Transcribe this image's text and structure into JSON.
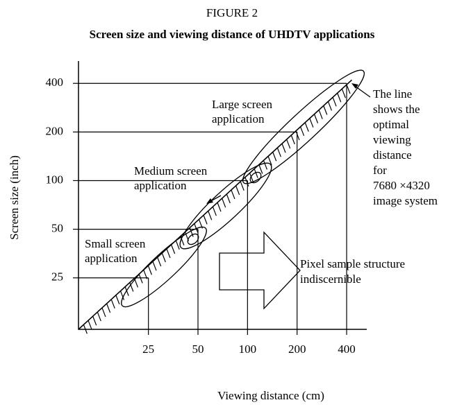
{
  "chart_data": {
    "type": "line",
    "figure_label": "FIGURE 2",
    "title": "Screen size and viewing distance of UHDTV applications",
    "x_label": "Viewing distance (cm)",
    "y_label": "Screen size (inch)",
    "log_x": true,
    "log_y": true,
    "xlim": [
      9.4,
      530
    ],
    "ylim": [
      12,
      550
    ],
    "xticks": [
      25,
      50,
      100,
      200,
      400
    ],
    "yticks": [
      25,
      50,
      100,
      200,
      400
    ],
    "guides": true,
    "series": [
      {
        "color": "#000000",
        "x": [
          9.4,
          430
        ],
        "values": [
          12,
          420
        ]
      }
    ],
    "annotations": [
      {
        "lines": [
          "Large screen",
          "application"
        ]
      },
      {
        "lines": [
          "Medium screen",
          "application"
        ]
      },
      {
        "lines": [
          "Small screen",
          "application"
        ]
      },
      {
        "lines": [
          "The line",
          "shows the",
          "optimal",
          "viewing",
          "distance",
          "for",
          "7680 ×4320",
          "image system"
        ]
      },
      {
        "lines": [
          "Pixel sample structure",
          "indiscernible"
        ]
      }
    ]
  }
}
